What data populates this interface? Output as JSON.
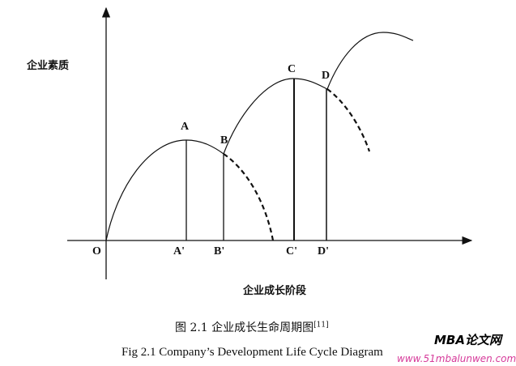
{
  "diagram": {
    "y_axis_label": "企业素质",
    "x_axis_label": "企业成长阶段",
    "origin_label": "O",
    "points": [
      "A",
      "B",
      "C",
      "D"
    ],
    "axis_marks": [
      "A'",
      "B'",
      "C'",
      "D'"
    ]
  },
  "caption": {
    "chinese": "图 2.1 企业成长生命周期图",
    "chinese_ref": "[11]",
    "english": "Fig 2.1 Company’s Development Life Cycle Diagram"
  },
  "watermark": {
    "brand": "MBA论文网",
    "url": "www.51mbalunwen.com"
  }
}
